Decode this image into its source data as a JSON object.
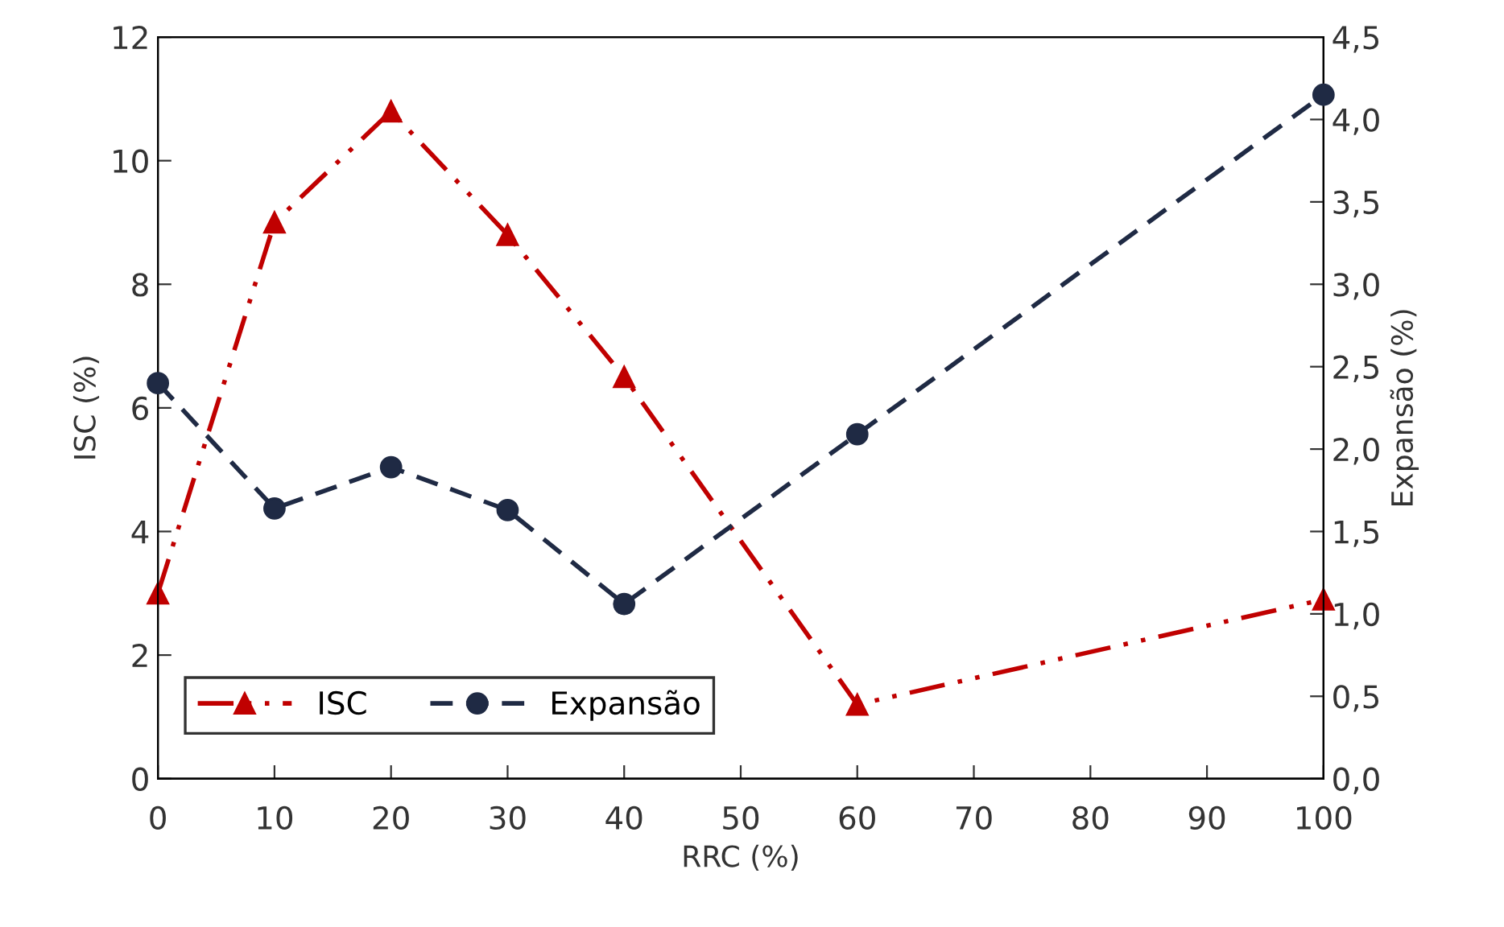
{
  "chart_data": {
    "type": "line",
    "xlabel": "RRC (%)",
    "ylabel": "ISC (%)",
    "y2label": "Expansão (%)",
    "x": [
      0,
      10,
      20,
      30,
      40,
      60,
      100
    ],
    "series": [
      {
        "name": "ISC",
        "color": "#c00000",
        "values": [
          3.0,
          9.0,
          10.8,
          8.8,
          6.5,
          1.2,
          2.9
        ],
        "marker": "triangle",
        "line_style": "dashdotdot"
      },
      {
        "name": "Expansão",
        "color": "#1f2a44",
        "values": [
          2.4,
          1.64,
          1.89,
          1.63,
          1.06,
          2.09,
          4.15
        ],
        "marker": "circle",
        "line_style": "dashed",
        "axis": "y2"
      }
    ],
    "xlim": [
      0,
      100
    ],
    "xticks": [
      0,
      10,
      20,
      30,
      40,
      50,
      60,
      70,
      80,
      90,
      100
    ],
    "ylim": [
      0,
      12
    ],
    "yticks": [
      0,
      2,
      4,
      6,
      8,
      10,
      12
    ],
    "y2lim": [
      0,
      4.5
    ],
    "y2ticks": [
      {
        "value": 0,
        "label": "0,0"
      },
      {
        "value": 0.5,
        "label": "0,5"
      },
      {
        "value": 1,
        "label": "1,0"
      },
      {
        "value": 1.5,
        "label": "1,5"
      },
      {
        "value": 2,
        "label": "2,0"
      },
      {
        "value": 2.5,
        "label": "2,5"
      },
      {
        "value": 3,
        "label": "3,0"
      },
      {
        "value": 3.5,
        "label": "3,5"
      },
      {
        "value": 4,
        "label": "4,0"
      },
      {
        "value": 4.5,
        "label": "4,5"
      }
    ],
    "grid": false,
    "legend": "bottom left"
  }
}
